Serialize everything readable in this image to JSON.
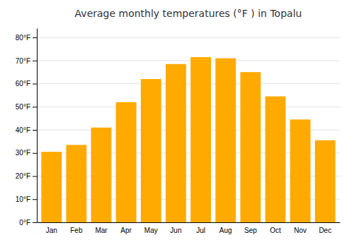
{
  "chart_data": {
    "type": "bar",
    "title": "Average monthly temperatures (°F ) in Topalu",
    "categories": [
      "Jan",
      "Feb",
      "Mar",
      "Apr",
      "May",
      "Jun",
      "Jul",
      "Aug",
      "Sep",
      "Oct",
      "Nov",
      "Dec"
    ],
    "values": [
      30.5,
      33.5,
      41.0,
      52.0,
      62.0,
      68.5,
      71.5,
      71.0,
      65.0,
      54.5,
      44.5,
      35.5
    ],
    "color": "#FFAA00",
    "ylim": [
      0,
      84
    ],
    "yticks": [
      {
        "value": 0,
        "label": "0°F"
      },
      {
        "value": 10,
        "label": "10°F"
      },
      {
        "value": 20,
        "label": "20°F"
      },
      {
        "value": 30,
        "label": "30°F"
      },
      {
        "value": 40,
        "label": "40°F"
      },
      {
        "value": 50,
        "label": "50°F"
      },
      {
        "value": 60,
        "label": "60°F"
      },
      {
        "value": 70,
        "label": "70°F"
      },
      {
        "value": 80,
        "label": "80°F"
      }
    ],
    "grid": true
  }
}
